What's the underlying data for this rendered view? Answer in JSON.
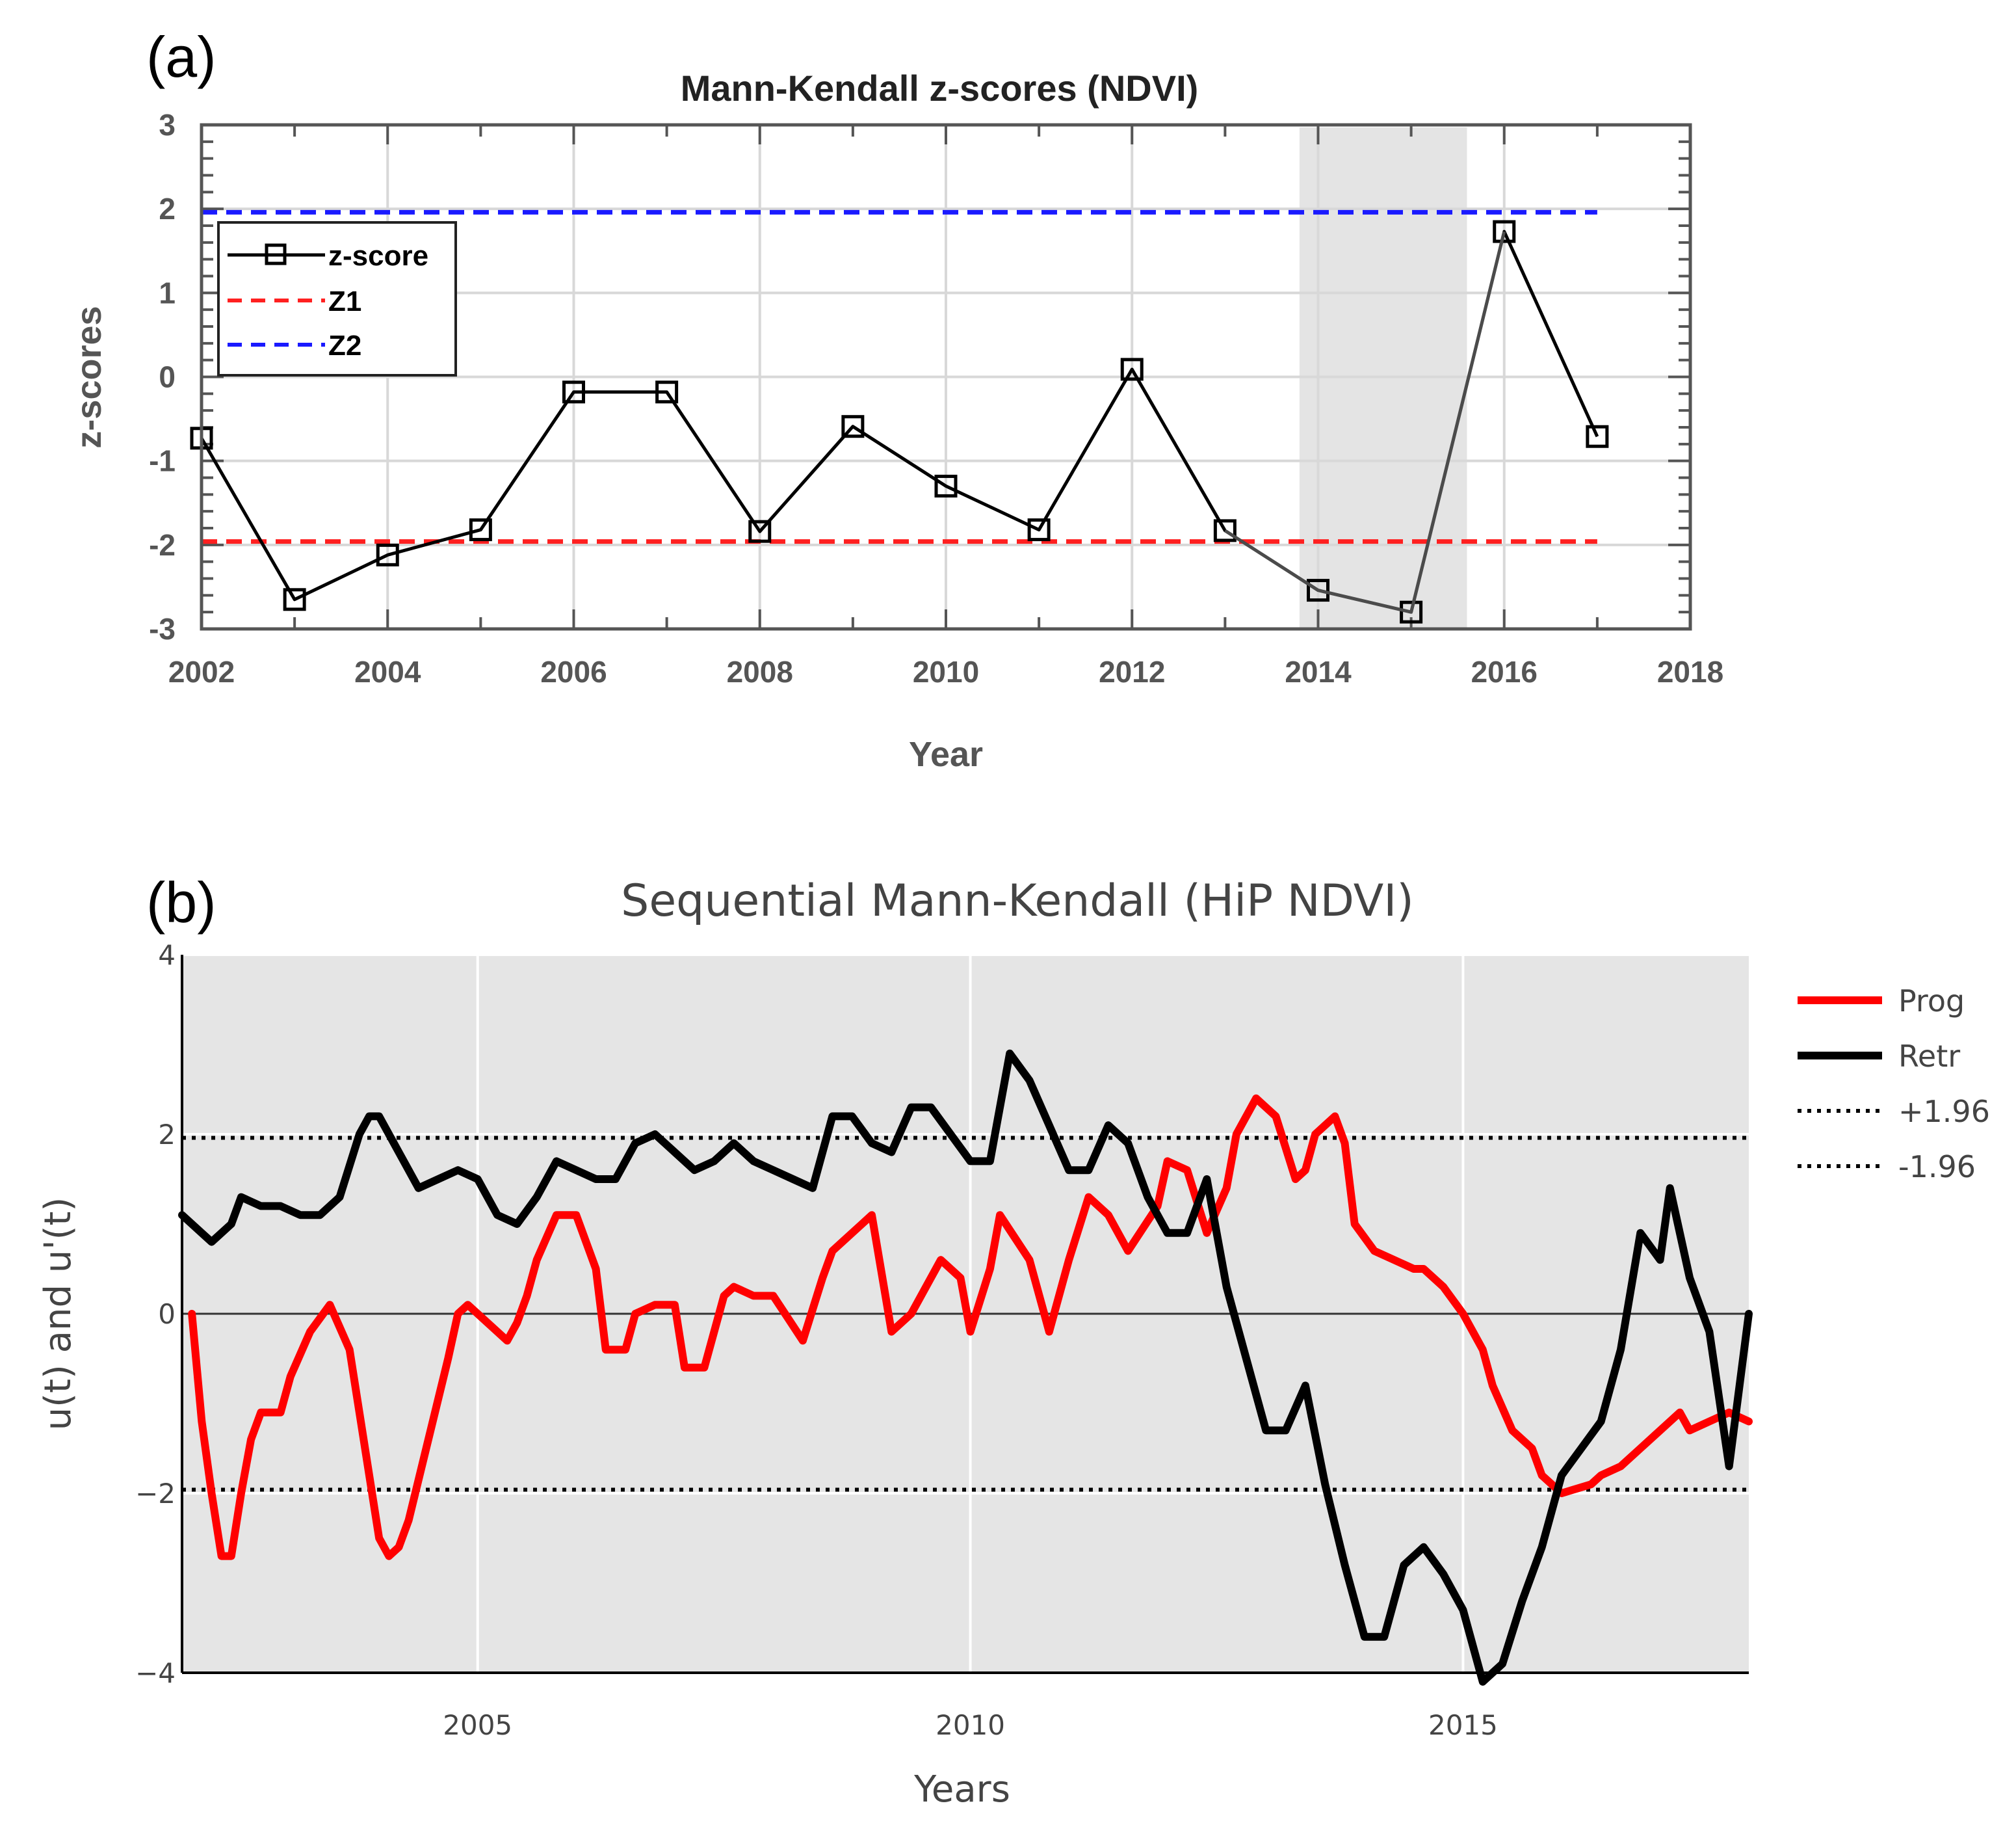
{
  "chart_data": [
    {
      "panel_label": "(a)",
      "type": "line",
      "title": "Mann-Kendall z-scores (NDVI)",
      "xlabel": "Year",
      "ylabel": "z-scores",
      "xlim": [
        2002,
        2018
      ],
      "ylim": [
        -3,
        3
      ],
      "xticks": [
        "2002",
        "2004",
        "2006",
        "2008",
        "2010",
        "2012",
        "2014",
        "2016",
        "2018"
      ],
      "yticks": [
        "3",
        "2",
        "1",
        "0",
        "-1",
        "-2",
        "-3"
      ],
      "x": [
        2002,
        2003,
        2004,
        2005,
        2006,
        2007,
        2008,
        2009,
        2010,
        2011,
        2012,
        2013,
        2014,
        2015,
        2016,
        2017
      ],
      "series": [
        {
          "name": "z-score",
          "color": "#000000",
          "marker": "square",
          "values": [
            -0.73,
            -2.65,
            -2.12,
            -1.82,
            -0.18,
            -0.18,
            -1.84,
            -0.59,
            -1.3,
            -1.82,
            0.09,
            -1.83,
            -2.54,
            -2.8,
            1.73,
            -0.71
          ]
        }
      ],
      "reference_lines": [
        {
          "name": "Z1",
          "value": -1.96,
          "color": "#ff2020",
          "style": "dashed"
        },
        {
          "name": "Z2",
          "value": 1.96,
          "color": "#1a1aff",
          "style": "dashed"
        }
      ],
      "shaded_region": {
        "x": [
          2013.8,
          2015.6
        ],
        "color": "#e4e4e4"
      },
      "legend": {
        "position": "upper-left",
        "entries": [
          "z-score",
          "Z1",
          "Z2"
        ]
      },
      "grid": true
    },
    {
      "panel_label": "(b)",
      "type": "line",
      "title": "Sequential Mann-Kendall (HiP NDVI)",
      "xlabel": "Years",
      "ylabel": "u(t) and u'(t)",
      "xlim": [
        2002.0,
        2017.9
      ],
      "ylim": [
        -4,
        4
      ],
      "xticks": [
        "2005",
        "2010",
        "2015"
      ],
      "yticks": [
        "4",
        "2",
        "0",
        "−2",
        "−4"
      ],
      "series": [
        {
          "name": "Prog",
          "color": "#ff0000",
          "x": [
            2002.1,
            2002.2,
            2002.3,
            2002.4,
            2002.5,
            2002.6,
            2002.7,
            2002.8,
            2003.0,
            2003.1,
            2003.3,
            2003.5,
            2003.7,
            2003.8,
            2003.9,
            2004.0,
            2004.1,
            2004.2,
            2004.3,
            2004.5,
            2004.7,
            2004.8,
            2004.9,
            2005.1,
            2005.3,
            2005.4,
            2005.5,
            2005.6,
            2005.8,
            2006.0,
            2006.2,
            2006.3,
            2006.5,
            2006.6,
            2006.8,
            2007.0,
            2007.1,
            2007.3,
            2007.5,
            2007.6,
            2007.8,
            2008.0,
            2008.3,
            2008.5,
            2008.6,
            2008.9,
            2009.0,
            2009.2,
            2009.4,
            2009.7,
            2009.9,
            2010.0,
            2010.2,
            2010.3,
            2010.6,
            2010.8,
            2011.0,
            2011.2,
            2011.4,
            2011.6,
            2011.9,
            2012.0,
            2012.2,
            2012.4,
            2012.6,
            2012.7,
            2012.9,
            2013.1,
            2013.3,
            2013.4,
            2013.5,
            2013.7,
            2013.8,
            2013.9,
            2014.1,
            2014.3,
            2014.5,
            2014.6,
            2014.8,
            2015.0,
            2015.2,
            2015.3,
            2015.5,
            2015.7,
            2015.8,
            2016.0,
            2016.3,
            2016.4,
            2016.6,
            2016.8,
            2017.0,
            2017.2,
            2017.3,
            2017.5,
            2017.7,
            2017.9
          ],
          "values": [
            0.0,
            -1.2,
            -2.0,
            -2.7,
            -2.7,
            -2.0,
            -1.4,
            -1.1,
            -1.1,
            -0.7,
            -0.2,
            0.1,
            -0.4,
            -1.1,
            -1.8,
            -2.5,
            -2.7,
            -2.6,
            -2.3,
            -1.4,
            -0.5,
            0.0,
            0.1,
            -0.1,
            -0.3,
            -0.1,
            0.2,
            0.6,
            1.1,
            1.1,
            0.5,
            -0.4,
            -0.4,
            0.0,
            0.1,
            0.1,
            -0.6,
            -0.6,
            0.2,
            0.3,
            0.2,
            0.2,
            -0.3,
            0.4,
            0.7,
            1.0,
            1.1,
            -0.2,
            0.0,
            0.6,
            0.4,
            -0.2,
            0.5,
            1.1,
            0.6,
            -0.2,
            0.6,
            1.3,
            1.1,
            0.7,
            1.2,
            1.7,
            1.6,
            0.9,
            1.4,
            2.0,
            2.4,
            2.2,
            1.5,
            1.6,
            2.0,
            2.2,
            1.9,
            1.0,
            0.7,
            0.6,
            0.5,
            0.5,
            0.3,
            0.0,
            -0.4,
            -0.8,
            -1.3,
            -1.5,
            -1.8,
            -2.0,
            -1.9,
            -1.8,
            -1.7,
            -1.5,
            -1.3,
            -1.1,
            -1.3,
            -1.2,
            -1.1,
            -1.2
          ]
        },
        {
          "name": "Retr",
          "color": "#000000",
          "x": [
            2002.0,
            2002.2,
            2002.3,
            2002.5,
            2002.6,
            2002.8,
            2003.0,
            2003.2,
            2003.4,
            2003.6,
            2003.8,
            2003.9,
            2004.0,
            2004.2,
            2004.4,
            2004.6,
            2004.8,
            2005.0,
            2005.2,
            2005.4,
            2005.6,
            2005.8,
            2006.0,
            2006.2,
            2006.4,
            2006.6,
            2006.8,
            2007.0,
            2007.2,
            2007.4,
            2007.6,
            2007.8,
            2008.0,
            2008.2,
            2008.4,
            2008.6,
            2008.8,
            2009.0,
            2009.2,
            2009.4,
            2009.6,
            2009.8,
            2010.0,
            2010.2,
            2010.4,
            2010.6,
            2010.8,
            2011.0,
            2011.2,
            2011.4,
            2011.6,
            2011.8,
            2012.0,
            2012.2,
            2012.4,
            2012.6,
            2012.8,
            2013.0,
            2013.2,
            2013.4,
            2013.6,
            2013.8,
            2014.0,
            2014.2,
            2014.4,
            2014.6,
            2014.8,
            2015.0,
            2015.2,
            2015.4,
            2015.6,
            2015.8,
            2016.0,
            2016.2,
            2016.4,
            2016.6,
            2016.8,
            2017.0,
            2017.1,
            2017.3,
            2017.5,
            2017.7,
            2017.9
          ],
          "values": [
            1.1,
            0.9,
            0.8,
            1.0,
            1.3,
            1.2,
            1.2,
            1.1,
            1.1,
            1.3,
            2.0,
            2.2,
            2.2,
            1.8,
            1.4,
            1.5,
            1.6,
            1.5,
            1.1,
            1.0,
            1.3,
            1.7,
            1.6,
            1.5,
            1.5,
            1.9,
            2.0,
            1.8,
            1.6,
            1.7,
            1.9,
            1.7,
            1.6,
            1.5,
            1.4,
            2.2,
            2.2,
            1.9,
            1.8,
            2.3,
            2.3,
            2.0,
            1.7,
            1.7,
            2.9,
            2.6,
            2.1,
            1.6,
            1.6,
            2.1,
            1.9,
            1.3,
            0.9,
            0.9,
            1.5,
            0.3,
            -0.5,
            -1.3,
            -1.3,
            -0.8,
            -1.9,
            -2.8,
            -3.6,
            -3.6,
            -2.8,
            -2.6,
            -2.9,
            -3.3,
            -4.1,
            -3.9,
            -3.2,
            -2.6,
            -1.8,
            -1.5,
            -1.2,
            -0.4,
            0.9,
            0.6,
            1.4,
            0.4,
            -0.2,
            -1.7,
            0.0
          ]
        }
      ],
      "reference_lines": [
        {
          "name": "+1.96",
          "value": 1.96,
          "color": "#000000",
          "style": "dotted"
        },
        {
          "name": "-1.96",
          "value": -1.96,
          "color": "#000000",
          "style": "dotted"
        }
      ],
      "legend": {
        "position": "right",
        "entries": [
          "Prog",
          "Retr",
          "+1.96",
          "-1.96"
        ]
      },
      "grid": true
    }
  ]
}
